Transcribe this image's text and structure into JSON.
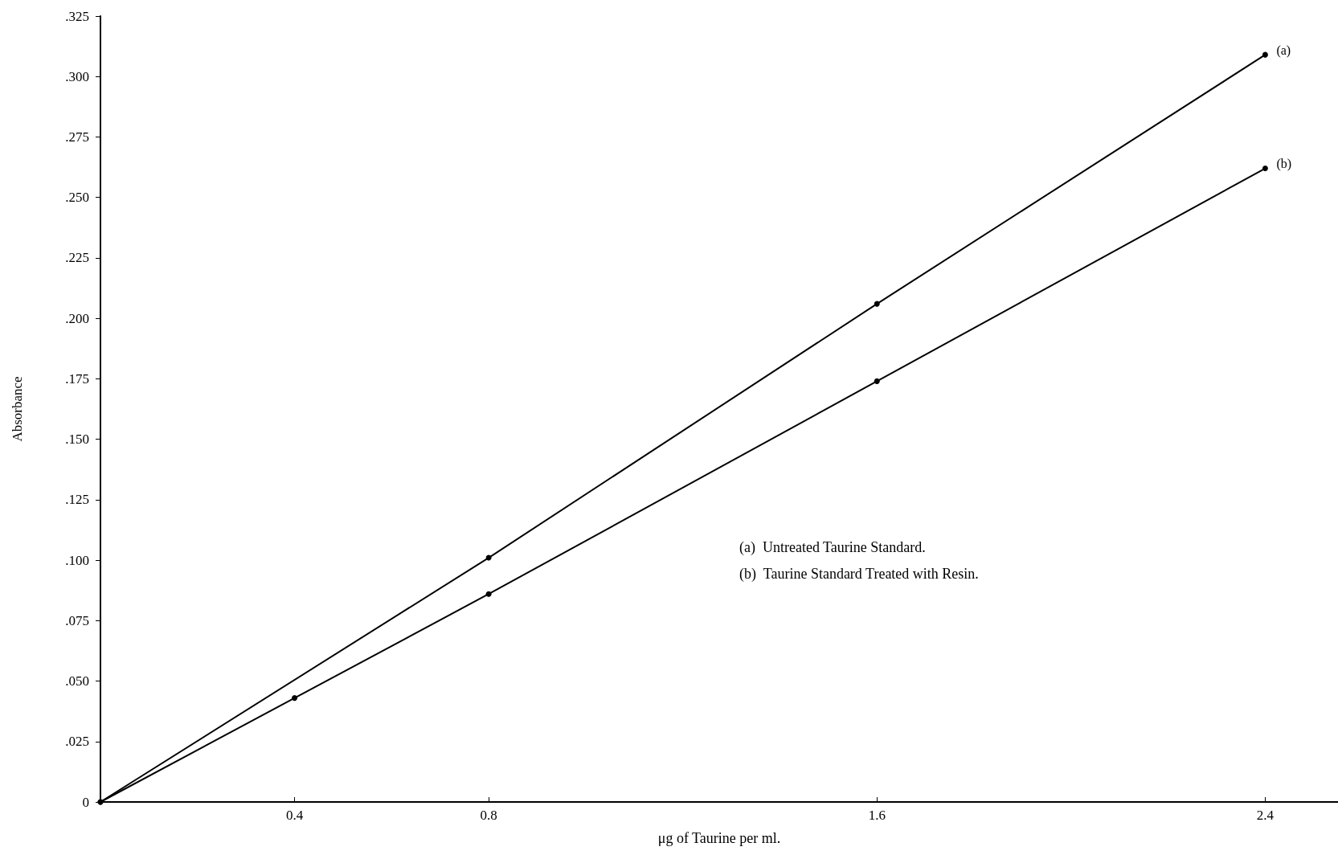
{
  "chart_data": {
    "type": "line",
    "xlabel": "μg of Taurine per ml.",
    "ylabel": "Absorbance",
    "series": [
      {
        "name": "(a)",
        "color": "#000000",
        "x": [
          0,
          0.8,
          1.6,
          2.4
        ],
        "values": [
          0,
          0.101,
          0.206,
          0.309
        ]
      },
      {
        "name": "(b)",
        "color": "#000000",
        "x": [
          0,
          0.4,
          0.8,
          1.6,
          2.4
        ],
        "values": [
          0,
          0.043,
          0.086,
          0.174,
          0.262
        ]
      }
    ],
    "xlim": [
      0,
      2.55
    ],
    "xticks": [
      0.4,
      0.8,
      1.6,
      2.4
    ],
    "ylim": [
      0,
      0.325
    ],
    "yticks": [
      0,
      {
        "value": 0.025,
        "label": ".025"
      },
      {
        "value": 0.05,
        "label": ".050"
      },
      {
        "value": 0.075,
        "label": ".075"
      },
      {
        "value": 0.1,
        "label": ".100"
      },
      {
        "value": 0.125,
        "label": ".125"
      },
      {
        "value": 0.15,
        "label": ".150"
      },
      {
        "value": 0.175,
        "label": ".175"
      },
      {
        "value": 0.2,
        "label": ".200"
      },
      {
        "value": 0.225,
        "label": ".225"
      },
      {
        "value": 0.25,
        "label": ".250"
      },
      {
        "value": 0.275,
        "label": ".275"
      },
      {
        "value": 0.3,
        "label": ".300"
      },
      {
        "value": 0.325,
        "label": ".325"
      }
    ],
    "annotations": [
      "(a)  Untreated Taurine Standard.",
      "(b)  Taurine Standard Treated with Resin."
    ],
    "grid": false,
    "legend": false,
    "marker": "circle",
    "line_style": "solid"
  }
}
